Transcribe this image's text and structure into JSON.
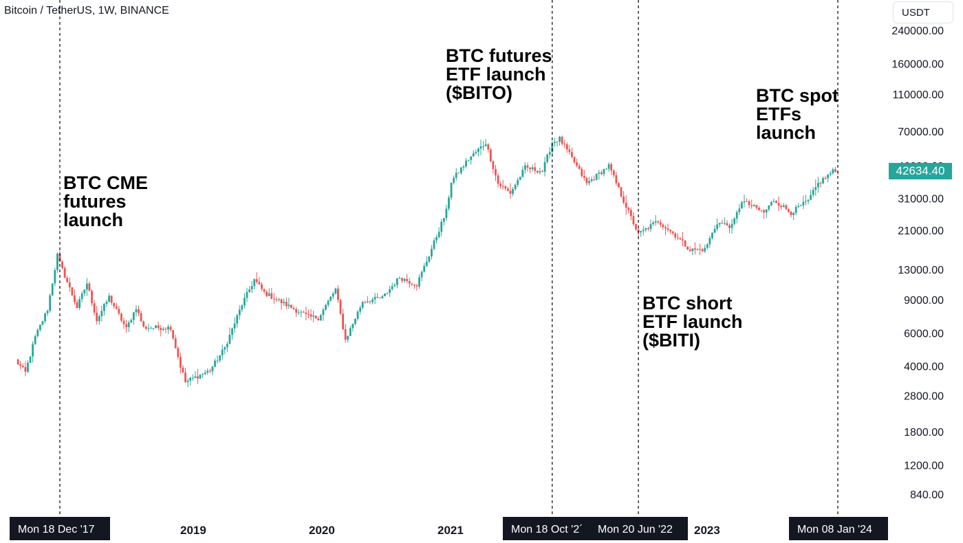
{
  "header": {
    "symbol_title": "Bitcoin / TetherUS, 1W, BINANCE",
    "currency_button": "USDT"
  },
  "colors": {
    "up_candle": "#26a69a",
    "down_candle": "#ef5350",
    "event_line": "#000000",
    "time_label_bg": "#131722",
    "price_tag_bg": "#26a69a"
  },
  "annotations": {
    "cme": "BTC CME\nfutures\nlaunch",
    "bito": "BTC futures\nETF launch\n($BITO)",
    "biti": "BTC short\nETF launch\n($BITI)",
    "spot": "BTC spot\nETFs\nlaunch"
  },
  "time_axis": {
    "event_labels": {
      "cme": "Mon 18 Dec '17",
      "bito": "Mon 18 Oct '2´",
      "biti": "Mon 20 Jun '22",
      "spot": "Mon 08 Jan '24"
    },
    "years": {
      "y2019": "2019",
      "y2020": "2020",
      "y2021": "2021",
      "y2023": "2023"
    }
  },
  "last_price": "42634.40",
  "chart_data": {
    "type": "candlestick",
    "title": "Bitcoin / TetherUS, 1W, BINANCE",
    "x_unit": "week",
    "y_scale": "log",
    "y_unit": "USDT",
    "ylim": [
      650,
      290000
    ],
    "y_ticks": [
      "240000.00",
      "160000.00",
      "110000.00",
      "70000.00",
      "46000.00",
      "31000.00",
      "21000.00",
      "13000.00",
      "9000.00",
      "6000.00",
      "4000.00",
      "2800.00",
      "1800.00",
      "1200.00",
      "840.00"
    ],
    "x_ticks": [
      "2019",
      "2020",
      "2021",
      "2023"
    ],
    "price_anchors": [
      {
        "date": "2017-08-14",
        "close": 4300
      },
      {
        "date": "2017-09-11",
        "close": 3700
      },
      {
        "date": "2017-10-09",
        "close": 5700
      },
      {
        "date": "2017-11-13",
        "close": 8000
      },
      {
        "date": "2017-12-11",
        "close": 15500
      },
      {
        "date": "2017-12-18",
        "close": 14000
      },
      {
        "date": "2018-02-05",
        "close": 8200
      },
      {
        "date": "2018-03-05",
        "close": 11000
      },
      {
        "date": "2018-04-02",
        "close": 7000
      },
      {
        "date": "2018-05-07",
        "close": 9300
      },
      {
        "date": "2018-06-25",
        "close": 6300
      },
      {
        "date": "2018-07-23",
        "close": 8200
      },
      {
        "date": "2018-08-13",
        "close": 6400
      },
      {
        "date": "2018-10-29",
        "close": 6400
      },
      {
        "date": "2018-11-26",
        "close": 4000
      },
      {
        "date": "2018-12-10",
        "close": 3300
      },
      {
        "date": "2019-02-18",
        "close": 3800
      },
      {
        "date": "2019-04-01",
        "close": 5000
      },
      {
        "date": "2019-05-20",
        "close": 8500
      },
      {
        "date": "2019-06-24",
        "close": 11500
      },
      {
        "date": "2019-07-22",
        "close": 9800
      },
      {
        "date": "2019-09-30",
        "close": 8300
      },
      {
        "date": "2019-11-25",
        "close": 7300
      },
      {
        "date": "2019-12-23",
        "close": 7200
      },
      {
        "date": "2020-02-10",
        "close": 10200
      },
      {
        "date": "2020-03-09",
        "close": 5500
      },
      {
        "date": "2020-04-27",
        "close": 8800
      },
      {
        "date": "2020-06-22",
        "close": 9200
      },
      {
        "date": "2020-08-10",
        "close": 11800
      },
      {
        "date": "2020-09-28",
        "close": 10800
      },
      {
        "date": "2020-11-02",
        "close": 15500
      },
      {
        "date": "2020-12-21",
        "close": 26500
      },
      {
        "date": "2021-01-04",
        "close": 38000
      },
      {
        "date": "2021-02-22",
        "close": 50000
      },
      {
        "date": "2021-04-12",
        "close": 61000
      },
      {
        "date": "2021-05-17",
        "close": 37000
      },
      {
        "date": "2021-06-21",
        "close": 33000
      },
      {
        "date": "2021-08-02",
        "close": 45000
      },
      {
        "date": "2021-09-20",
        "close": 43000
      },
      {
        "date": "2021-10-18",
        "close": 61000
      },
      {
        "date": "2021-11-08",
        "close": 64000
      },
      {
        "date": "2021-12-20",
        "close": 48000
      },
      {
        "date": "2022-01-24",
        "close": 37000
      },
      {
        "date": "2022-03-28",
        "close": 46000
      },
      {
        "date": "2022-05-09",
        "close": 30000
      },
      {
        "date": "2022-06-20",
        "close": 20000
      },
      {
        "date": "2022-08-15",
        "close": 23500
      },
      {
        "date": "2022-10-10",
        "close": 19200
      },
      {
        "date": "2022-11-14",
        "close": 16500
      },
      {
        "date": "2022-12-26",
        "close": 16600
      },
      {
        "date": "2023-01-30",
        "close": 23000
      },
      {
        "date": "2023-03-13",
        "close": 22000
      },
      {
        "date": "2023-04-10",
        "close": 30000
      },
      {
        "date": "2023-06-12",
        "close": 26000
      },
      {
        "date": "2023-07-10",
        "close": 30300
      },
      {
        "date": "2023-08-28",
        "close": 26000
      },
      {
        "date": "2023-10-16",
        "close": 30000
      },
      {
        "date": "2023-11-13",
        "close": 37000
      },
      {
        "date": "2023-12-25",
        "close": 43000
      },
      {
        "date": "2024-01-08",
        "close": 42634.4
      }
    ],
    "events": [
      {
        "date": "2017-12-18",
        "label": "BTC CME futures launch"
      },
      {
        "date": "2021-10-18",
        "label": "BTC futures ETF launch ($BITO)"
      },
      {
        "date": "2022-06-20",
        "label": "BTC short ETF launch ($BITI)"
      },
      {
        "date": "2024-01-08",
        "label": "BTC spot ETFs launch"
      }
    ]
  }
}
